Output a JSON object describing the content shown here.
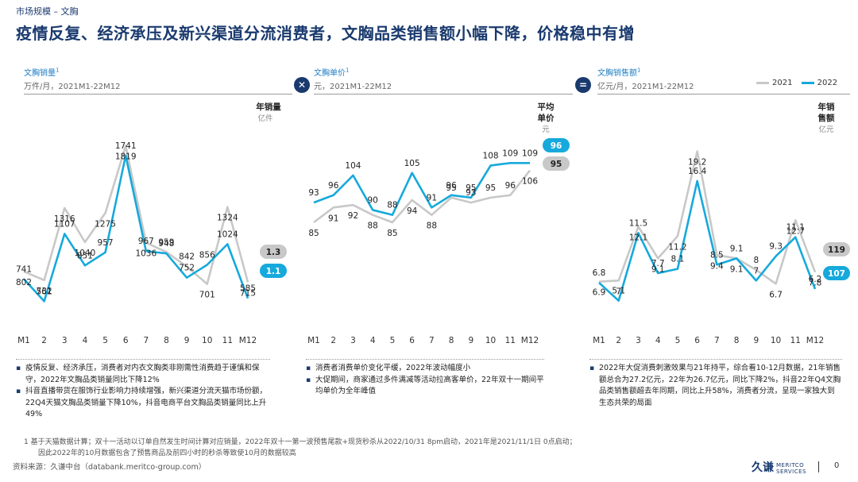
{
  "header": {
    "breadcrumb": "市场规模 – 文胸",
    "title": "疫情反复、经济承压及新兴渠道分流消费者，文胸品类销售额小幅下降，价格稳中有增"
  },
  "operators": {
    "times": "✕",
    "equals": "="
  },
  "legend": {
    "a": "2021",
    "b": "2022"
  },
  "colors": {
    "c2021": "#c8c8c8",
    "c2022": "#16a9dc",
    "navy": "#1a3a6e",
    "grayPill": "#c8c8c8"
  },
  "panels": [
    {
      "title": "文胸销量",
      "sup": "1",
      "subtitle": "万件/月，2021M1-22M12"
    },
    {
      "title": "文胸单价",
      "sup": "1",
      "subtitle": "元，2021M1-22M12"
    },
    {
      "title": "文胸销售额",
      "sup": "1",
      "subtitle": "亿元/月，2021M1-22M12"
    }
  ],
  "chart_data": [
    {
      "type": "line",
      "title": "文胸销量",
      "unit": "万件/月",
      "categories": [
        "M1",
        "2",
        "3",
        "4",
        "5",
        "6",
        "7",
        "8",
        "9",
        "10",
        "11",
        "M12"
      ],
      "series": [
        {
          "name": "2021",
          "values": [
            802,
            732,
            1316,
            1040,
            1275,
            1819,
            1036,
            959,
            842,
            701,
            1324,
            715
          ]
        },
        {
          "name": "2022",
          "values": [
            741,
            561,
            1107,
            851,
            957,
            1741,
            967,
            948,
            752,
            856,
            1024,
            585
          ]
        }
      ],
      "ylim": [
        300,
        2100
      ],
      "annual_label": "年销量",
      "annual_unit": "亿件",
      "annual": {
        "2021": "1.3",
        "2022": "1.1"
      }
    },
    {
      "type": "line",
      "title": "文胸单价",
      "unit": "元",
      "categories": [
        "M1",
        "2",
        "3",
        "4",
        "5",
        "6",
        "7",
        "8",
        "9",
        "10",
        "11",
        "M12"
      ],
      "series": [
        {
          "name": "2021",
          "values": [
            85,
            91,
            92,
            88,
            85,
            94,
            88,
            95,
            93,
            95,
            96,
            106
          ]
        },
        {
          "name": "2022",
          "values": [
            93,
            96,
            104,
            90,
            88,
            105,
            91,
            96,
            95,
            108,
            109,
            109
          ]
        }
      ],
      "ylim": [
        40,
        130
      ],
      "annual_label": "平均单价",
      "annual_unit": "元",
      "annual": {
        "2021": "95",
        "2022": "96"
      }
    },
    {
      "type": "line",
      "title": "文胸销售额",
      "unit": "亿元/月",
      "categories": [
        "M1",
        "2",
        "3",
        "4",
        "5",
        "6",
        "7",
        "8",
        "9",
        "10",
        "11",
        "M12"
      ],
      "series": [
        {
          "name": "2021",
          "values": [
            6.9,
            7.0,
            12.1,
            9.1,
            11.2,
            19.2,
            9.4,
            9.1,
            8.0,
            6.7,
            12.7,
            7.8
          ]
        },
        {
          "name": "2022",
          "values": [
            6.8,
            5.1,
            11.5,
            7.7,
            8.1,
            16.4,
            8.5,
            9.1,
            7.0,
            9.3,
            11.1,
            6.2
          ]
        }
      ],
      "ylim": [
        2,
        23
      ],
      "annual_label": "年销售额",
      "annual_unit": "亿元",
      "annual": {
        "2021": "119",
        "2022": "107"
      }
    }
  ],
  "notes": {
    "left": [
      "疫情反复、经济承压，消费者对内衣文胸类非刚需性消费趋于谨慎和保守，2022年文胸品类销量同比下降12%",
      "抖音直播带货在服饰行业影响力持续增强，新兴渠道分流天猫市场份额，22Q4天猫文胸品类销量下降10%，抖音电商平台文胸品类销量同比上升49%"
    ],
    "mid": [
      "消费者消费单价变化平缓，2022年波动幅度小",
      "大促期间，商家通过多件满减等活动拉高客单价，22年双十一期间平均单价为全年峰值"
    ],
    "right": [
      "2022年大促消费刺激效果与21年持平，综合看10-12月数据，21年销售额总合为27.2亿元，22年为26.7亿元，同比下降2%，抖音22年Q4文胸品类销售额超去年同期，同比上升58%，消费者分流，呈现一家独大到生态共荣的局面"
    ]
  },
  "footnote": {
    "line1": "1   基于天猫数据计算；双十一活动以订单自然发生时间计算对应销量，2022年双十一第一波预售尾款+现货秒杀从2022/10/31 8pm启动，2021年是2021/11/1日 0点启动；",
    "line2": "因此2022年的10月数据包含了预售商品及前四小时的秒杀等致使10月的数据较高"
  },
  "source": "资料来源：久谦中台（databank.meritco-group.com）",
  "logo": {
    "cn": "久谦",
    "en1": "MERITCO",
    "en2": "SERVICES"
  },
  "page_number": "0"
}
